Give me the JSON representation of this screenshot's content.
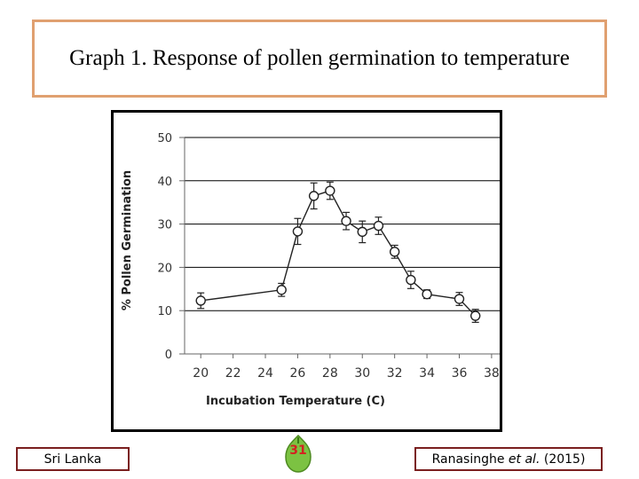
{
  "slide": {
    "title": "Graph 1. Response of pollen germination to temperature",
    "left_label": "Sri Lanka",
    "citation": {
      "authors": "Ranasinghe",
      "etal": "et al.",
      "year": "(2015)"
    },
    "page_number": "31"
  },
  "chart_data": {
    "type": "line",
    "title": "",
    "xlabel": "Incubation Temperature (C)",
    "ylabel": "% Pollen Germination",
    "xlim": [
      19,
      38.5
    ],
    "ylim": [
      0,
      50
    ],
    "xticks": [
      20,
      22,
      24,
      26,
      28,
      30,
      32,
      34,
      36,
      38
    ],
    "yticks": [
      0,
      10,
      20,
      30,
      40,
      50
    ],
    "grid": "horizontal",
    "legend": "none",
    "series": [
      {
        "x": [
          20,
          25,
          26,
          27,
          28,
          29,
          30,
          31,
          32,
          33,
          34,
          36,
          37
        ],
        "y": [
          12.3,
          14.8,
          28.3,
          36.5,
          37.7,
          30.7,
          28.2,
          29.6,
          23.6,
          17.1,
          13.8,
          12.7,
          8.8
        ],
        "error": [
          1.8,
          1.5,
          3.0,
          3.0,
          2.0,
          2.0,
          2.5,
          2.0,
          1.5,
          2.0,
          1.0,
          1.5,
          1.5
        ]
      }
    ]
  }
}
